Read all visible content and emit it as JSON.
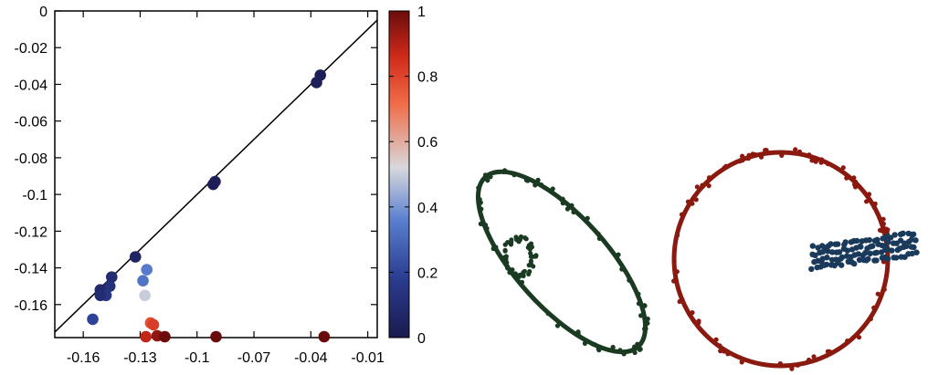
{
  "chart_data": [
    {
      "type": "scatter",
      "title": "",
      "xlabel": "",
      "ylabel": "",
      "xlim": [
        -0.175,
        -0.005
      ],
      "ylim": [
        -0.178,
        0.0
      ],
      "x_ticks": [
        {
          "v": -0.16,
          "label": "-0.16"
        },
        {
          "v": -0.13,
          "label": "-0.13"
        },
        {
          "v": -0.1,
          "label": "-0.1"
        },
        {
          "v": -0.07,
          "label": "-0.07"
        },
        {
          "v": -0.04,
          "label": "-0.04"
        },
        {
          "v": -0.01,
          "label": "-0.01"
        }
      ],
      "y_ticks": [
        {
          "v": 0.0,
          "label": "0"
        },
        {
          "v": -0.02,
          "label": "-0.02"
        },
        {
          "v": -0.04,
          "label": "-0.04"
        },
        {
          "v": -0.06,
          "label": "-0.06"
        },
        {
          "v": -0.08,
          "label": "-0.08"
        },
        {
          "v": -0.1,
          "label": "-0.1"
        },
        {
          "v": -0.12,
          "label": "-0.12"
        },
        {
          "v": -0.14,
          "label": "-0.14"
        },
        {
          "v": -0.16,
          "label": "-0.16"
        }
      ],
      "reference_line": "y = x",
      "grid": false,
      "colorbar": {
        "range": [
          0,
          1
        ],
        "ticks": [
          {
            "v": 0,
            "label": "0"
          },
          {
            "v": 0.2,
            "label": "0.2"
          },
          {
            "v": 0.4,
            "label": "0.4"
          },
          {
            "v": 0.6,
            "label": "0.6"
          },
          {
            "v": 0.8,
            "label": "0.8"
          },
          {
            "v": 1,
            "label": "1"
          }
        ],
        "colors": [
          "#1a1a4e",
          "#2a3c8f",
          "#5a7fd0",
          "#d8d8dc",
          "#f06a45",
          "#d02a1a",
          "#6a0c0c"
        ]
      },
      "points": [
        {
          "x": -0.035,
          "y": -0.035,
          "c": 0.02
        },
        {
          "x": -0.037,
          "y": -0.039,
          "c": 0.03
        },
        {
          "x": -0.0905,
          "y": -0.093,
          "c": 0.03
        },
        {
          "x": -0.0915,
          "y": -0.0945,
          "c": 0.02
        },
        {
          "x": -0.1325,
          "y": -0.134,
          "c": 0.06
        },
        {
          "x": -0.145,
          "y": -0.145,
          "c": 0.1
        },
        {
          "x": -0.146,
          "y": -0.15,
          "c": 0.12
        },
        {
          "x": -0.151,
          "y": -0.152,
          "c": 0.08
        },
        {
          "x": -0.148,
          "y": -0.155,
          "c": 0.15
        },
        {
          "x": -0.151,
          "y": -0.155,
          "c": 0.1
        },
        {
          "x": -0.155,
          "y": -0.168,
          "c": 0.2
        },
        {
          "x": -0.1265,
          "y": -0.141,
          "c": 0.35
        },
        {
          "x": -0.1285,
          "y": -0.147,
          "c": 0.33
        },
        {
          "x": -0.1275,
          "y": -0.155,
          "c": 0.5
        },
        {
          "x": -0.1245,
          "y": -0.17,
          "c": 0.78
        },
        {
          "x": -0.123,
          "y": -0.171,
          "c": 0.82
        },
        {
          "x": -0.127,
          "y": -0.178,
          "c": 0.88
        },
        {
          "x": -0.121,
          "y": -0.177,
          "c": 0.95
        },
        {
          "x": -0.117,
          "y": -0.178,
          "c": 1.0
        },
        {
          "x": -0.09,
          "y": -0.178,
          "c": 1.0
        },
        {
          "x": -0.033,
          "y": -0.178,
          "c": 1.0
        }
      ]
    }
  ],
  "shapes": [
    {
      "name": "green-ellipse-shape",
      "color": "#1a3a22"
    },
    {
      "name": "red-circle-shape",
      "color": "#8a1a10"
    },
    {
      "name": "blue-point-cluster",
      "color": "#1a3a5c"
    }
  ]
}
